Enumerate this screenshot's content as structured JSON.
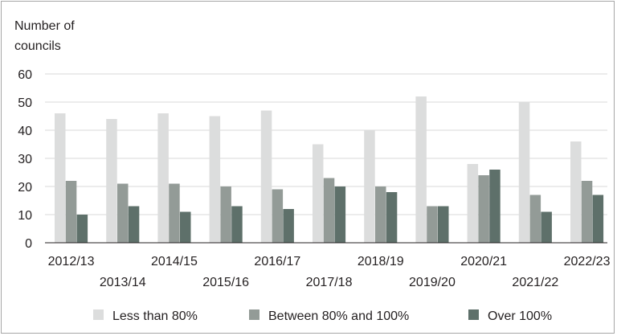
{
  "chart_data": {
    "type": "bar",
    "ylabel": [
      "Number of",
      "councils"
    ],
    "ylim": [
      0,
      60
    ],
    "yticks": [
      0,
      10,
      20,
      30,
      40,
      50,
      60
    ],
    "grid": true,
    "legend_position": "bottom",
    "categories": [
      "2012/13",
      "2013/14",
      "2014/15",
      "2015/16",
      "2016/17",
      "2017/18",
      "2018/19",
      "2019/20",
      "2020/21",
      "2021/22",
      "2022/23"
    ],
    "series": [
      {
        "name": "Less than 80%",
        "color": "#dcdddd",
        "values": [
          46,
          44,
          46,
          45,
          47,
          35,
          40,
          52,
          28,
          50,
          36
        ]
      },
      {
        "name": "Between 80% and 100%",
        "color": "#939b97",
        "values": [
          22,
          21,
          21,
          20,
          19,
          23,
          20,
          13,
          24,
          17,
          22
        ]
      },
      {
        "name": "Over 100%",
        "color": "#5e706a",
        "values": [
          10,
          13,
          11,
          13,
          12,
          20,
          18,
          13,
          26,
          11,
          17
        ]
      }
    ]
  }
}
